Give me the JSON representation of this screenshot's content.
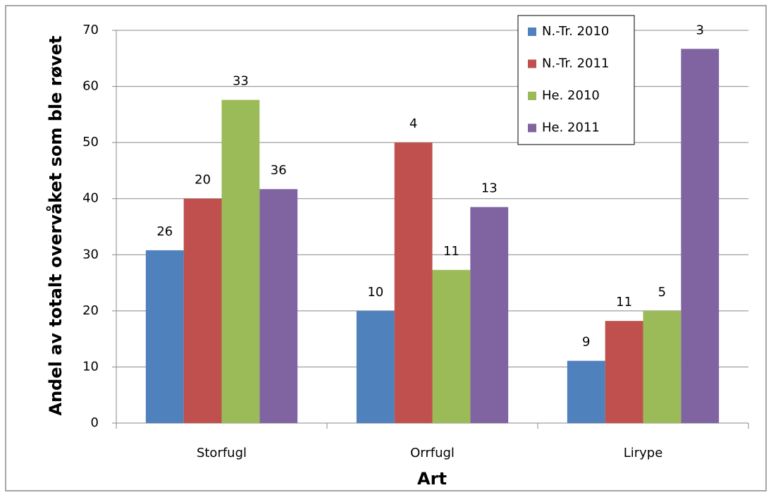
{
  "chart_data": {
    "type": "bar",
    "y_axis_label": "Andel av totalt overvåket som ble røvet",
    "x_axis_label": "Art",
    "categories": [
      "Storfugl",
      "Orrfugl",
      "Lirype"
    ],
    "series": [
      {
        "name": "N.-Tr. 2010",
        "color": "#4f81bd",
        "values": [
          30.8,
          20,
          11.1
        ],
        "n": [
          26,
          10,
          9
        ]
      },
      {
        "name": "N.-Tr. 2011",
        "color": "#c0504d",
        "values": [
          40,
          50,
          18.2
        ],
        "n": [
          20,
          4,
          11
        ]
      },
      {
        "name": "He. 2010",
        "color": "#9bbb59",
        "values": [
          57.6,
          27.3,
          20
        ],
        "n": [
          33,
          11,
          5
        ]
      },
      {
        "name": "He. 2011",
        "color": "#8064a2",
        "values": [
          41.7,
          38.5,
          66.7
        ],
        "n": [
          36,
          13,
          3
        ]
      }
    ],
    "ylim": [
      0,
      70
    ],
    "yticks": [
      0,
      10,
      20,
      30,
      40,
      50,
      60,
      70
    ],
    "grid": true,
    "legend": "top-right"
  }
}
